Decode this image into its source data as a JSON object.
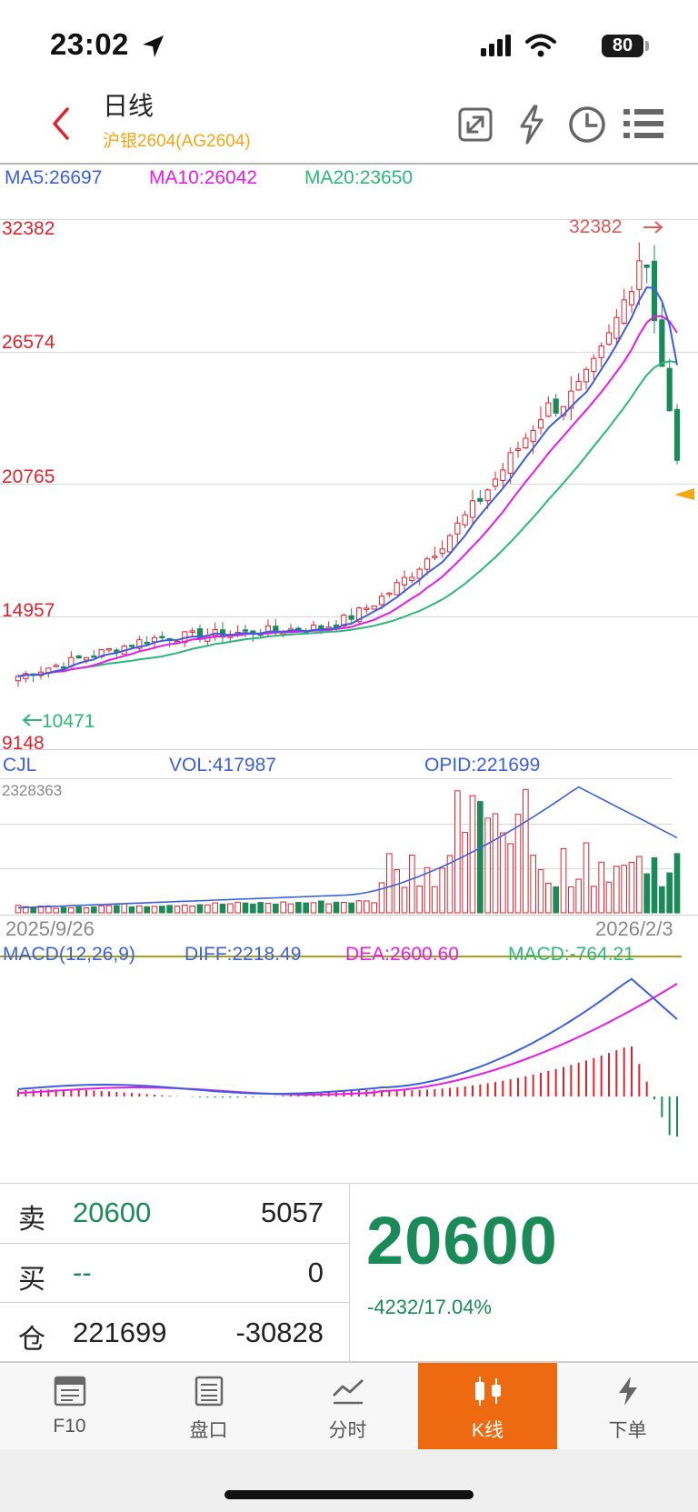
{
  "status_bar": {
    "time": "23:02",
    "battery": "80"
  },
  "header": {
    "title": "日线",
    "subtitle": "沪银2604(AG2604)",
    "icons": [
      "back-icon",
      "expand-icon",
      "lightning-icon",
      "clock-icon",
      "menu-icon"
    ]
  },
  "ma_legend": {
    "ma5": "MA5:26697",
    "ma10": "MA10:26042",
    "ma20": "MA20:23650"
  },
  "price_axis": {
    "labels": [
      "32382",
      "26574",
      "20765",
      "14957",
      "9148"
    ],
    "high_mark": "32382",
    "low_mark": "10471"
  },
  "volume_panel": {
    "cjl": "CJL",
    "vol": "VOL:417987",
    "opid": "OPID:221699",
    "max": "2328363",
    "date_start": "2025/9/26",
    "date_end": "2026/2/3"
  },
  "macd_panel": {
    "label": "MACD(12,26,9)",
    "diff": "DIFF:2218.49",
    "dea": "DEA:2600.60",
    "macd": "MACD:-764.21"
  },
  "quote": {
    "sell": {
      "label": "卖",
      "price": "20600",
      "qty": "5057"
    },
    "buy": {
      "label": "买",
      "price": "--",
      "qty": "0"
    },
    "position": {
      "label": "仓",
      "value": "221699",
      "change": "-30828"
    },
    "last_price": "20600",
    "change": "-4232/17.04%"
  },
  "nav": [
    {
      "label": "F10",
      "icon": "f10-icon"
    },
    {
      "label": "盘口",
      "icon": "order-book-icon"
    },
    {
      "label": "分时",
      "icon": "intraday-icon"
    },
    {
      "label": "K线",
      "icon": "candlestick-icon"
    },
    {
      "label": "下单",
      "icon": "order-icon"
    }
  ],
  "colors": {
    "up": "#e0242e",
    "down": "#1b8a59",
    "ma5": "#3b5fdc",
    "ma10": "#e81ce8",
    "ma20": "#2db87a",
    "accent": "#ee6a10"
  },
  "chart_data": {
    "type": "candlestick",
    "price_range": [
      9148,
      32382
    ],
    "x_range": [
      "2025/9/26",
      "2026/2/3"
    ],
    "last": {
      "close": 20600
    },
    "ma": {
      "MA5": 26697,
      "MA10": 26042,
      "MA20": 23650
    },
    "volume": {
      "VOL": 417987,
      "OPID": 221699,
      "max": 2328363
    },
    "macd": {
      "DIFF": 2218.49,
      "DEA": 2600.6,
      "MACD": -764.21
    }
  }
}
